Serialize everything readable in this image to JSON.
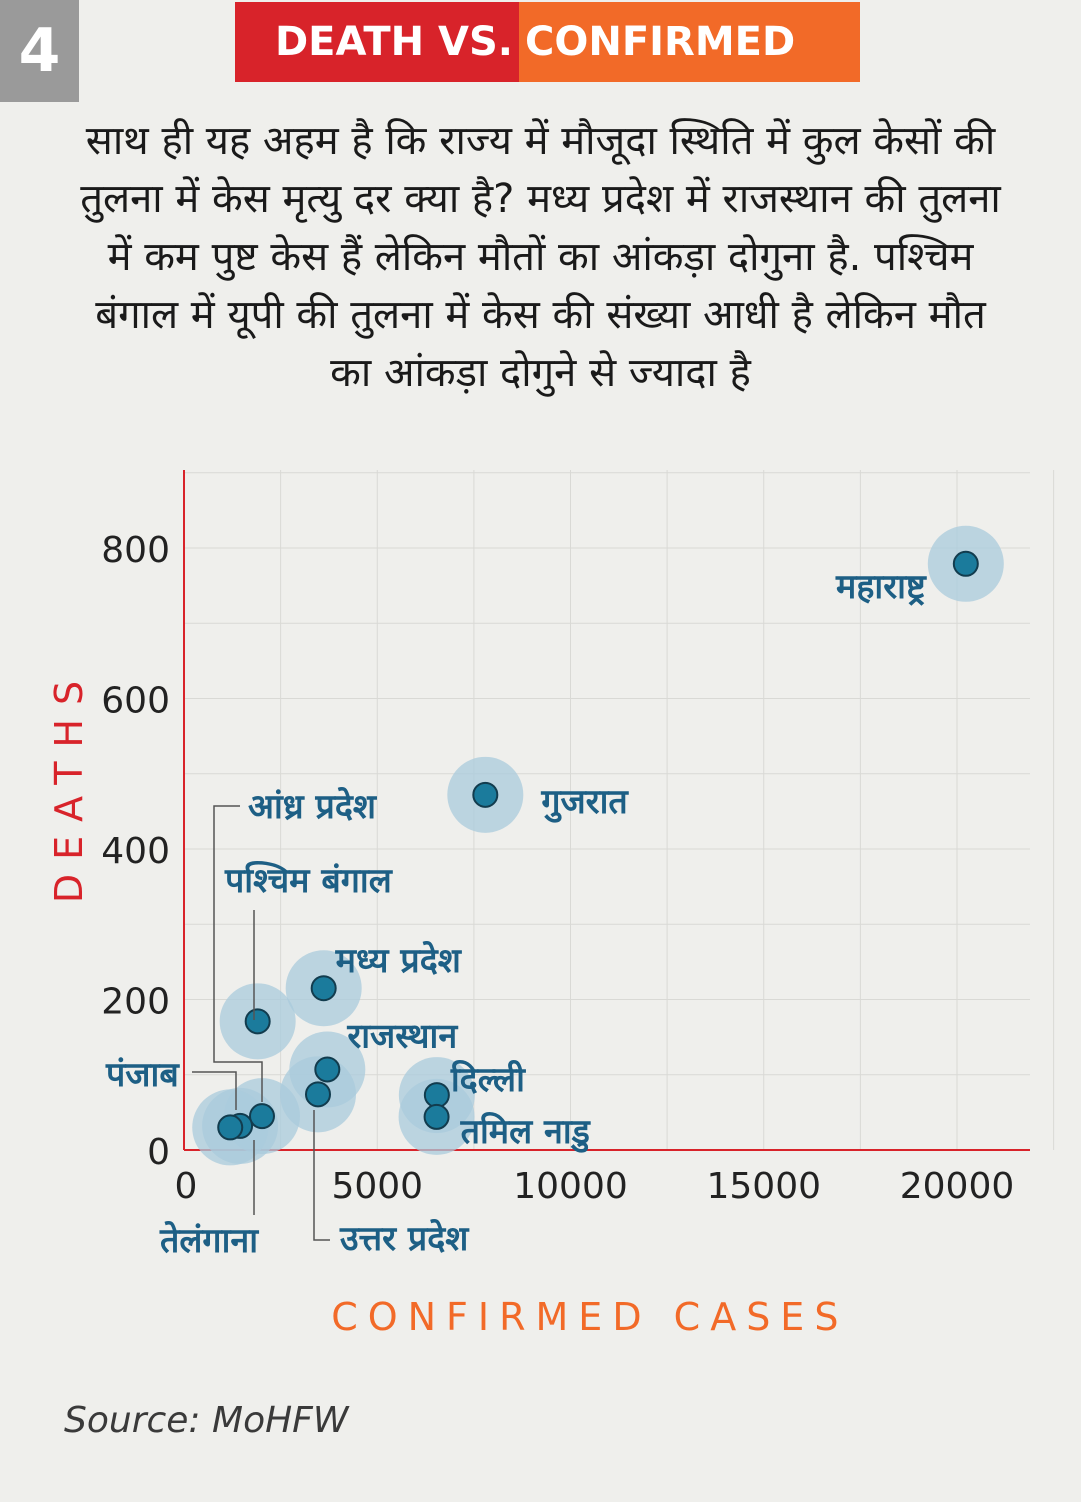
{
  "header": {
    "badge": "4",
    "title_part1": "DEATH VS.",
    "title_part2": "CONFIRMED"
  },
  "description": "साथ ही यह अहम है कि राज्य में मौजूदा स्थिति में कुल केसों की तुलना में केस मृत्यु दर क्या है? मध्य प्रदेश में राजस्थान की तुलना में कम पुष्ट केस हैं लेकिन मौतों का आंकड़ा दोगुना है. पश्चिम बंगाल में यूपी की तुलना में केस की संख्या आधी है लेकिन मौत का आंकड़ा दोगुने से ज्यादा है",
  "source": "Source: MoHFW",
  "colors": {
    "axis": "#d8232a",
    "xlabel": "#f26a28",
    "ylabel": "#d8232a",
    "point": "#1b7b9c",
    "halo": "#a9cbdc",
    "label": "#1d5f85"
  },
  "chart_data": {
    "type": "scatter",
    "xlabel": "CONFIRMED CASES",
    "ylabel": "DEATHS",
    "xlim": [
      0,
      22500
    ],
    "ylim": [
      0,
      900
    ],
    "xticks": [
      0,
      5000,
      10000,
      15000,
      20000
    ],
    "yticks": [
      0,
      200,
      400,
      600,
      800
    ],
    "grid": true,
    "points": [
      {
        "label": "महाराष्ट्र",
        "x": 20228,
        "y": 779
      },
      {
        "label": "गुजरात",
        "x": 7796,
        "y": 472
      },
      {
        "label": "मध्य प्रदेश",
        "x": 3614,
        "y": 215
      },
      {
        "label": "पश्चिम बंगाल",
        "x": 1906,
        "y": 171
      },
      {
        "label": "राजस्थान",
        "x": 3708,
        "y": 107
      },
      {
        "label": "उत्तर प्रदेश",
        "x": 3467,
        "y": 74
      },
      {
        "label": "दिल्ली",
        "x": 6542,
        "y": 73
      },
      {
        "label": "तमिल नाडु",
        "x": 6535,
        "y": 44
      },
      {
        "label": "आंध्र प्रदेश",
        "x": 2018,
        "y": 45
      },
      {
        "label": "पंजाब",
        "x": 1451,
        "y": 32
      },
      {
        "label": "तेलंगाना",
        "x": 1196,
        "y": 30
      }
    ]
  }
}
